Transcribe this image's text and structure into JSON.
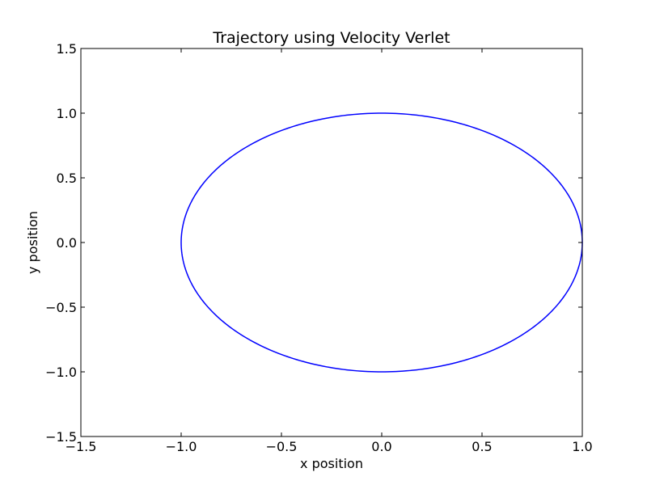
{
  "chart_data": {
    "type": "line",
    "title": "Trajectory using Velocity Verlet",
    "xlabel": "x position",
    "ylabel": "y position",
    "xlim": [
      -1.5,
      1.0
    ],
    "ylim": [
      -1.5,
      1.5
    ],
    "xticks": [
      -1.5,
      -1.0,
      -0.5,
      0.0,
      0.5,
      1.0
    ],
    "xtick_labels": [
      "−1.5",
      "−1.0",
      "−0.5",
      "0.0",
      "0.5",
      "1.0"
    ],
    "yticks": [
      -1.5,
      -1.0,
      -0.5,
      0.0,
      0.5,
      1.0,
      1.5
    ],
    "ytick_labels": [
      "−1.5",
      "−1.0",
      "−0.5",
      "0.0",
      "0.5",
      "1.0",
      "1.5"
    ],
    "grid": false,
    "legend": "none",
    "series": [
      {
        "color": "#0000ff",
        "curve": "circle",
        "center": [
          0.0,
          0.0
        ],
        "radius": 1.0,
        "t_range": [
          0,
          6.283185307
        ],
        "x": "cos(t)",
        "y": "sin(t)"
      }
    ]
  }
}
